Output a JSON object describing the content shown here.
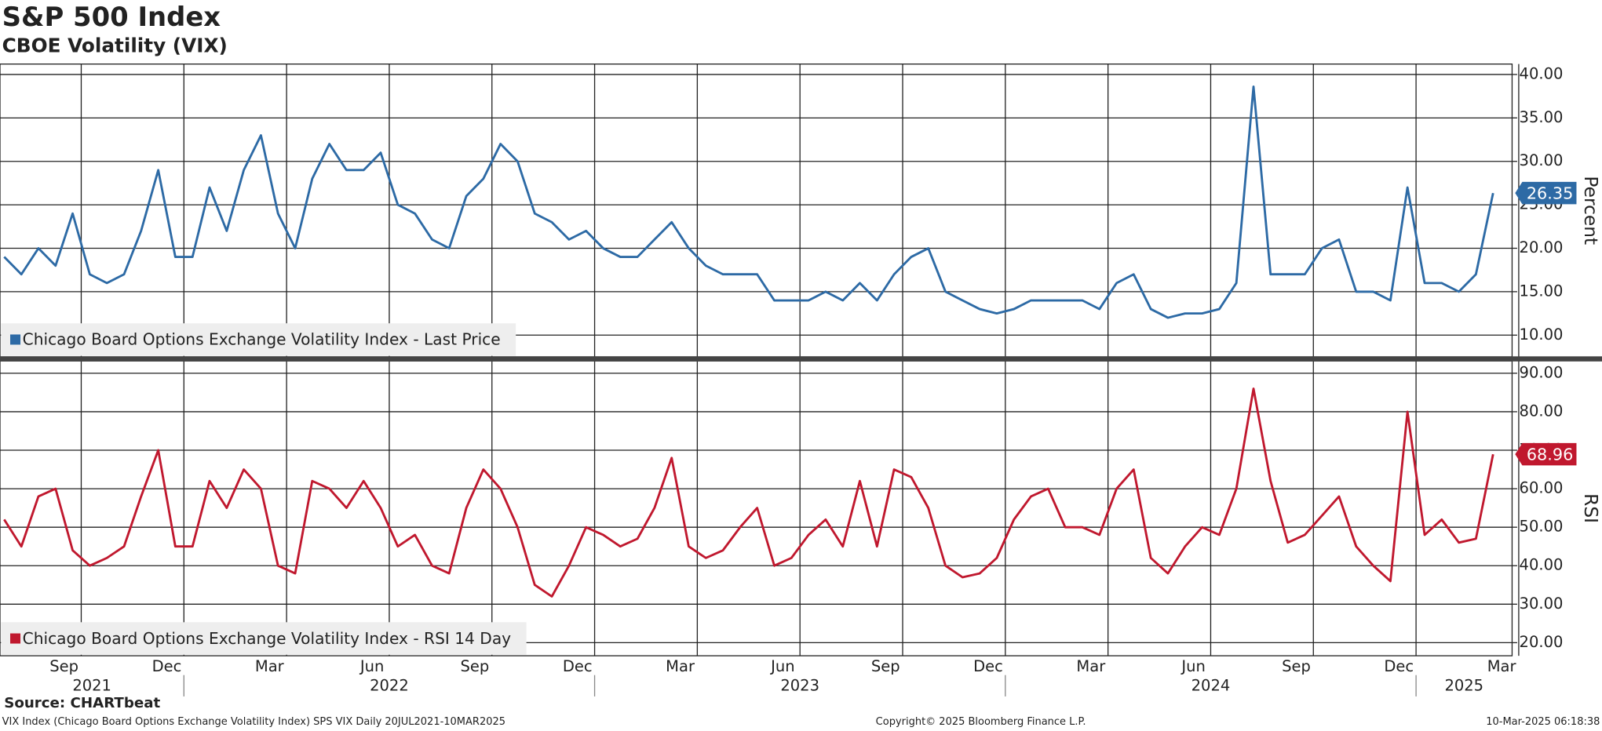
{
  "title": "S&P 500 Index",
  "subtitle": "CBOE Volatility (VIX)",
  "charts": [
    {
      "type": "line",
      "y_label": "Percent",
      "x": [
        "2021-07",
        "2021-08",
        "2021-08",
        "2021-09",
        "2021-09",
        "2021-10",
        "2021-10",
        "2021-11",
        "2021-11",
        "2021-12",
        "2021-12",
        "2022-01",
        "2022-01",
        "2022-02",
        "2022-02",
        "2022-03",
        "2022-03",
        "2022-04",
        "2022-04",
        "2022-05",
        "2022-05",
        "2022-06",
        "2022-06",
        "2022-07",
        "2022-07",
        "2022-08",
        "2022-08",
        "2022-09",
        "2022-09",
        "2022-10",
        "2022-10",
        "2022-11",
        "2022-11",
        "2022-12",
        "2022-12",
        "2023-01",
        "2023-01",
        "2023-02",
        "2023-02",
        "2023-03",
        "2023-03",
        "2023-04",
        "2023-04",
        "2023-05",
        "2023-05",
        "2023-06",
        "2023-06",
        "2023-07",
        "2023-07",
        "2023-08",
        "2023-08",
        "2023-09",
        "2023-09",
        "2023-10",
        "2023-10",
        "2023-11",
        "2023-11",
        "2023-12",
        "2023-12",
        "2024-01",
        "2024-01",
        "2024-02",
        "2024-02",
        "2024-03",
        "2024-03",
        "2024-04",
        "2024-04",
        "2024-05",
        "2024-05",
        "2024-06",
        "2024-06",
        "2024-07",
        "2024-07",
        "2024-08",
        "2024-08",
        "2024-09",
        "2024-09",
        "2024-10",
        "2024-10",
        "2024-11",
        "2024-11",
        "2024-12",
        "2024-12",
        "2025-01",
        "2025-01",
        "2025-02",
        "2025-02",
        "2025-03"
      ],
      "series": [
        {
          "name": "Chicago Board Options Exchange Volatility Index - Last Price",
          "color": "#2d6aa5",
          "last_value": "26.35",
          "values": [
            19,
            17,
            20,
            18,
            24,
            17,
            16,
            17,
            22,
            29,
            19,
            19,
            27,
            22,
            29,
            33,
            24,
            20,
            28,
            32,
            29,
            29,
            31,
            25,
            24,
            21,
            20,
            26,
            28,
            32,
            30,
            24,
            23,
            21,
            22,
            20,
            19,
            19,
            21,
            23,
            20,
            18,
            17,
            17,
            17,
            14,
            14,
            14,
            15,
            14,
            16,
            14,
            17,
            19,
            20,
            15,
            14,
            13,
            12.5,
            13,
            14,
            14,
            14,
            14,
            13,
            16,
            17,
            13,
            12,
            12.5,
            12.5,
            13,
            16,
            38.6,
            17,
            17,
            17,
            20,
            21,
            15,
            15,
            14,
            27,
            16,
            16,
            15,
            17,
            26.35
          ]
        }
      ],
      "ylim": [
        7.5,
        41.2
      ],
      "yticks": [
        {
          "value": 10,
          "label": "10.00"
        },
        {
          "value": 15,
          "label": "15.00"
        },
        {
          "value": 20,
          "label": "20.00"
        },
        {
          "value": 25,
          "label": "25.00"
        },
        {
          "value": 30,
          "label": "30.00"
        },
        {
          "value": 35,
          "label": "35.00"
        },
        {
          "value": 40,
          "label": "40.00"
        }
      ]
    },
    {
      "type": "line",
      "y_label": "RSI",
      "x": [
        "2021-07",
        "2021-08",
        "2021-08",
        "2021-09",
        "2021-09",
        "2021-10",
        "2021-10",
        "2021-11",
        "2021-11",
        "2021-12",
        "2021-12",
        "2022-01",
        "2022-01",
        "2022-02",
        "2022-02",
        "2022-03",
        "2022-03",
        "2022-04",
        "2022-04",
        "2022-05",
        "2022-05",
        "2022-06",
        "2022-06",
        "2022-07",
        "2022-07",
        "2022-08",
        "2022-08",
        "2022-09",
        "2022-09",
        "2022-10",
        "2022-10",
        "2022-11",
        "2022-11",
        "2022-12",
        "2022-12",
        "2023-01",
        "2023-01",
        "2023-02",
        "2023-02",
        "2023-03",
        "2023-03",
        "2023-04",
        "2023-04",
        "2023-05",
        "2023-05",
        "2023-06",
        "2023-06",
        "2023-07",
        "2023-07",
        "2023-08",
        "2023-08",
        "2023-09",
        "2023-09",
        "2023-10",
        "2023-10",
        "2023-11",
        "2023-11",
        "2023-12",
        "2023-12",
        "2024-01",
        "2024-01",
        "2024-02",
        "2024-02",
        "2024-03",
        "2024-03",
        "2024-04",
        "2024-04",
        "2024-05",
        "2024-05",
        "2024-06",
        "2024-06",
        "2024-07",
        "2024-07",
        "2024-08",
        "2024-08",
        "2024-09",
        "2024-09",
        "2024-10",
        "2024-10",
        "2024-11",
        "2024-11",
        "2024-12",
        "2024-12",
        "2025-01",
        "2025-01",
        "2025-02",
        "2025-02",
        "2025-03"
      ],
      "series": [
        {
          "name": "Chicago Board Options Exchange Volatility Index - RSI 14 Day",
          "color": "#c0182e",
          "last_value": "68.96",
          "values": [
            52,
            45,
            58,
            60,
            44,
            40,
            42,
            45,
            58,
            70,
            45,
            45,
            62,
            55,
            65,
            60,
            40,
            38,
            62,
            60,
            55,
            62,
            55,
            45,
            48,
            40,
            38,
            55,
            65,
            60,
            50,
            35,
            32,
            40,
            50,
            48,
            45,
            47,
            55,
            68,
            45,
            42,
            44,
            50,
            55,
            40,
            42,
            48,
            52,
            45,
            62,
            45,
            65,
            63,
            55,
            40,
            37,
            38,
            42,
            52,
            58,
            60,
            50,
            50,
            48,
            60,
            65,
            42,
            38,
            45,
            50,
            48,
            60,
            86,
            62,
            46,
            48,
            53,
            58,
            45,
            40,
            36,
            80,
            48,
            52,
            46,
            47,
            68.96
          ]
        }
      ],
      "ylim": [
        16.6,
        93.2
      ],
      "yticks": [
        {
          "value": 20,
          "label": "20.00"
        },
        {
          "value": 30,
          "label": "30.00"
        },
        {
          "value": 40,
          "label": "40.00"
        },
        {
          "value": 50,
          "label": "50.00"
        },
        {
          "value": 60,
          "label": "60.00"
        },
        {
          "value": 70,
          "label": "70.00"
        },
        {
          "value": 80,
          "label": "80.00"
        },
        {
          "value": 90,
          "label": "90.00"
        }
      ]
    }
  ],
  "xticks": [
    {
      "value": "2021-09",
      "label": "Sep"
    },
    {
      "value": "2021-12",
      "label": "Dec"
    },
    {
      "value": "2022-03",
      "label": "Mar"
    },
    {
      "value": "2022-06",
      "label": "Jun"
    },
    {
      "value": "2022-09",
      "label": "Sep"
    },
    {
      "value": "2022-12",
      "label": "Dec"
    },
    {
      "value": "2023-03",
      "label": "Mar"
    },
    {
      "value": "2023-06",
      "label": "Jun"
    },
    {
      "value": "2023-09",
      "label": "Sep"
    },
    {
      "value": "2023-12",
      "label": "Dec"
    },
    {
      "value": "2024-03",
      "label": "Mar"
    },
    {
      "value": "2024-06",
      "label": "Jun"
    },
    {
      "value": "2024-09",
      "label": "Sep"
    },
    {
      "value": "2024-12",
      "label": "Dec"
    },
    {
      "value": "2025-03",
      "label": "Mar"
    }
  ],
  "years": [
    "2021",
    "2022",
    "2023",
    "2024",
    "2025"
  ],
  "source": "Source: CHARTbeat",
  "footer_left": "VIX Index (Chicago Board Options Exchange Volatility Index) SPS VIX  Daily 20JUL2021-10MAR2025",
  "footer_center": "Copyright© 2025 Bloomberg Finance L.P.",
  "footer_right": "10-Mar-2025 06:18:38"
}
